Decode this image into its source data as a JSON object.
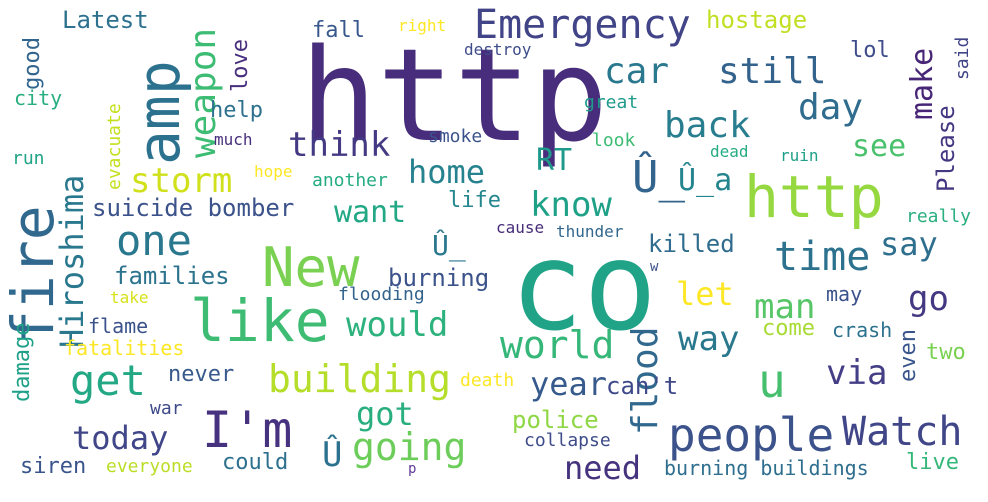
{
  "words": [
    {
      "text": "http",
      "color": "#472d7b"
    },
    {
      "text": "co",
      "color": "#20a386"
    },
    {
      "text": "New",
      "color": "#7ad151"
    },
    {
      "text": "http",
      "color": "#95d840"
    },
    {
      "text": "like",
      "color": "#3fbc73"
    },
    {
      "text": "fire",
      "color": "#31688e"
    },
    {
      "text": "amp",
      "color": "#2c728e"
    },
    {
      "text": "I'm",
      "color": "#46327e"
    },
    {
      "text": "people",
      "color": "#3b528b"
    },
    {
      "text": "Emergency",
      "color": "#414487"
    },
    {
      "text": "one",
      "color": "#2a788e"
    },
    {
      "text": "get",
      "color": "#22a884"
    },
    {
      "text": "building",
      "color": "#b5de2b"
    },
    {
      "text": "Hiroshima",
      "color": "#2a788e"
    },
    {
      "text": "u",
      "color": "#46c06f"
    },
    {
      "text": "time",
      "color": "#2c728e"
    },
    {
      "text": "would",
      "color": "#2db27d"
    },
    {
      "text": "world",
      "color": "#35b779"
    },
    {
      "text": "flood",
      "color": "#31688e"
    },
    {
      "text": "Watch",
      "color": "#404688"
    },
    {
      "text": "going",
      "color": "#6ccd5a"
    },
    {
      "text": "car",
      "color": "#2a788e"
    },
    {
      "text": "still",
      "color": "#33638d"
    },
    {
      "text": "back",
      "color": "#287d8e"
    },
    {
      "text": "day",
      "color": "#2f6c8e"
    },
    {
      "text": "weapon",
      "color": "#3dbc74"
    },
    {
      "text": "think",
      "color": "#443983"
    },
    {
      "text": "home",
      "color": "#26828e"
    },
    {
      "text": "storm",
      "color": "#d0e11c"
    },
    {
      "text": "know",
      "color": "#1fa187"
    },
    {
      "text": "Û_",
      "color": "#32648e"
    },
    {
      "text": "Û_a",
      "color": "#25858e"
    },
    {
      "text": "want",
      "color": "#22a884"
    },
    {
      "text": "say",
      "color": "#2e6f8e"
    },
    {
      "text": "go",
      "color": "#453882"
    },
    {
      "text": "man",
      "color": "#56c667"
    },
    {
      "text": "let",
      "color": "#fde725"
    },
    {
      "text": "way",
      "color": "#2a788e"
    },
    {
      "text": "year",
      "color": "#375a8c"
    },
    {
      "text": "via",
      "color": "#433e85"
    },
    {
      "text": "today",
      "color": "#404688"
    },
    {
      "text": "got",
      "color": "#29af7f"
    },
    {
      "text": "need",
      "color": "#46337e"
    },
    {
      "text": "Û",
      "color": "#2c728e"
    },
    {
      "text": "see",
      "color": "#4ac16d"
    },
    {
      "text": "RT",
      "color": "#1f9a8a"
    },
    {
      "text": "make",
      "color": "#482677"
    },
    {
      "text": "Please",
      "color": "#453781"
    },
    {
      "text": "suicide bomber",
      "color": "#3b528b"
    },
    {
      "text": "families",
      "color": "#2c738e"
    },
    {
      "text": "burning",
      "color": "#3b528b"
    },
    {
      "text": "killed",
      "color": "#2f6c8e"
    },
    {
      "text": "hostage",
      "color": "#c2df23"
    },
    {
      "text": "fall",
      "color": "#38588c"
    },
    {
      "text": "lol",
      "color": "#3e4c8a"
    },
    {
      "text": "love",
      "color": "#472f7d"
    },
    {
      "text": "help",
      "color": "#2d718e"
    },
    {
      "text": "Latest",
      "color": "#2d718e"
    },
    {
      "text": "good",
      "color": "#32658e"
    },
    {
      "text": "city",
      "color": "#29af7f"
    },
    {
      "text": "life",
      "color": "#24868e"
    },
    {
      "text": "Û_",
      "color": "#2a778e"
    },
    {
      "text": "never",
      "color": "#38598c"
    },
    {
      "text": "can't",
      "color": "#3e4989"
    },
    {
      "text": "police",
      "color": "#8fd744"
    },
    {
      "text": "could",
      "color": "#2d718e"
    },
    {
      "text": "live",
      "color": "#35b779"
    },
    {
      "text": "come",
      "color": "#a8db34"
    },
    {
      "text": "two",
      "color": "#7ad151"
    },
    {
      "text": "even",
      "color": "#39558c"
    },
    {
      "text": "crash",
      "color": "#2c728e"
    },
    {
      "text": "may",
      "color": "#3b528b"
    },
    {
      "text": "flame",
      "color": "#3b528b"
    },
    {
      "text": "fatalities",
      "color": "#fde725"
    },
    {
      "text": "damage",
      "color": "#1fa188"
    },
    {
      "text": "siren",
      "color": "#39558c"
    },
    {
      "text": "everyone",
      "color": "#bade28"
    },
    {
      "text": "burning buildings",
      "color": "#2e6e8e"
    },
    {
      "text": "war",
      "color": "#3e4a89"
    },
    {
      "text": "death",
      "color": "#fde725"
    },
    {
      "text": "collapse",
      "color": "#3e4c8a"
    },
    {
      "text": "flooding",
      "color": "#33638d"
    },
    {
      "text": "take",
      "color": "#d8e219"
    },
    {
      "text": "run",
      "color": "#20a386"
    },
    {
      "text": "evacuate",
      "color": "#c5e021"
    },
    {
      "text": "much",
      "color": "#472f7d"
    },
    {
      "text": "hope",
      "color": "#fde725"
    },
    {
      "text": "another",
      "color": "#25ac82"
    },
    {
      "text": "smoke",
      "color": "#3b528b"
    },
    {
      "text": "great",
      "color": "#1e9b8a"
    },
    {
      "text": "look",
      "color": "#3dbc74"
    },
    {
      "text": "dead",
      "color": "#25ac82"
    },
    {
      "text": "ruin",
      "color": "#1fa088"
    },
    {
      "text": "cause",
      "color": "#472d7b"
    },
    {
      "text": "thunder",
      "color": "#31678e"
    },
    {
      "text": "really",
      "color": "#29af7f"
    },
    {
      "text": "said",
      "color": "#414487"
    },
    {
      "text": "right",
      "color": "#fde725"
    },
    {
      "text": "destroy",
      "color": "#3e4c8a"
    },
    {
      "text": "w",
      "color": "#3b528b"
    },
    {
      "text": "p",
      "color": "#5e3c99"
    }
  ]
}
